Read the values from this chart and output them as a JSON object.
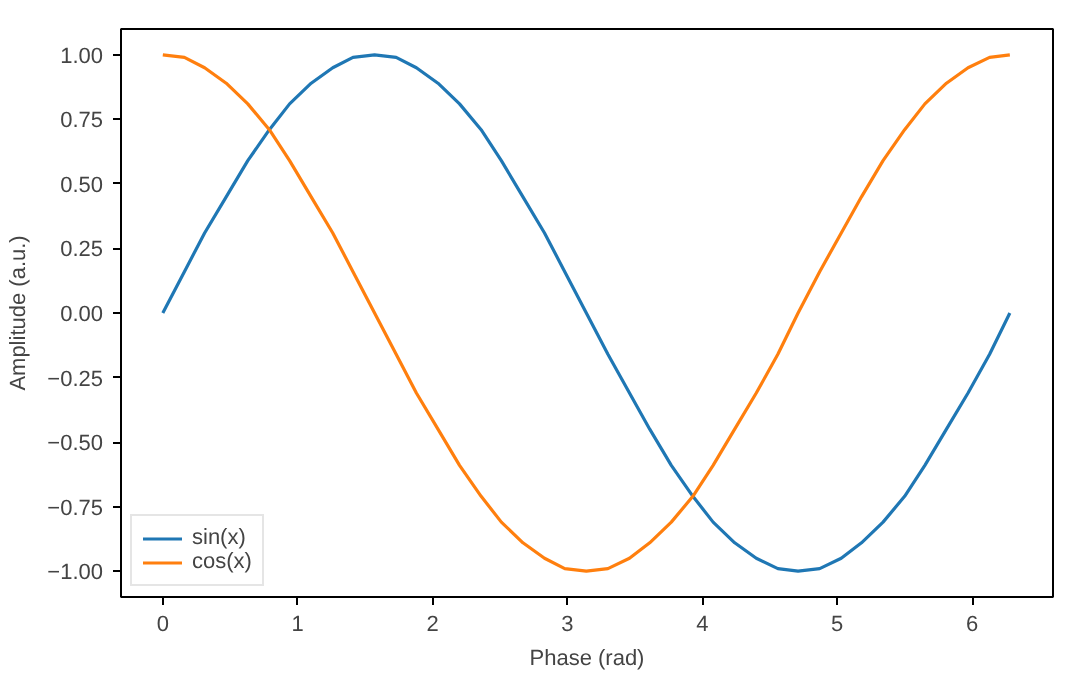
{
  "chart_data": {
    "type": "line",
    "xlabel": "Phase (rad)",
    "ylabel": "Amplitude (a.u.)",
    "x": [
      0,
      0.16,
      0.31,
      0.47,
      0.63,
      0.79,
      0.94,
      1.1,
      1.26,
      1.41,
      1.57,
      1.73,
      1.88,
      2.04,
      2.2,
      2.36,
      2.51,
      2.67,
      2.83,
      2.98,
      3.14,
      3.3,
      3.46,
      3.61,
      3.77,
      3.93,
      4.08,
      4.24,
      4.4,
      4.56,
      4.71,
      4.87,
      5.03,
      5.18,
      5.34,
      5.5,
      5.65,
      5.81,
      5.97,
      6.13,
      6.28
    ],
    "series": [
      {
        "name": "sin(x)",
        "color": "#1f77b4",
        "values": [
          0,
          0.16,
          0.31,
          0.45,
          0.59,
          0.71,
          0.81,
          0.89,
          0.95,
          0.99,
          1,
          0.99,
          0.95,
          0.89,
          0.81,
          0.71,
          0.59,
          0.45,
          0.31,
          0.16,
          0,
          -0.16,
          -0.31,
          -0.45,
          -0.59,
          -0.71,
          -0.81,
          -0.89,
          -0.95,
          -0.99,
          -1,
          -0.99,
          -0.95,
          -0.89,
          -0.81,
          -0.71,
          -0.59,
          -0.45,
          -0.31,
          -0.16,
          0
        ]
      },
      {
        "name": "cos(x)",
        "color": "#ff7f0e",
        "values": [
          1,
          0.99,
          0.95,
          0.89,
          0.81,
          0.71,
          0.59,
          0.45,
          0.31,
          0.16,
          0,
          -0.16,
          -0.31,
          -0.45,
          -0.59,
          -0.71,
          -0.81,
          -0.89,
          -0.95,
          -0.99,
          -1,
          -0.99,
          -0.95,
          -0.89,
          -0.81,
          -0.71,
          -0.59,
          -0.45,
          -0.31,
          -0.16,
          0,
          0.16,
          0.31,
          0.45,
          0.59,
          0.71,
          0.81,
          0.89,
          0.95,
          0.99,
          1
        ]
      }
    ],
    "xlim": [
      -0.31,
      6.6
    ],
    "ylim": [
      -1.1,
      1.1
    ],
    "xticks": [
      0,
      1,
      2,
      3,
      4,
      5,
      6
    ],
    "yticks": [
      {
        "value": -1,
        "label": "−1.00"
      },
      {
        "value": -0.75,
        "label": "−0.75"
      },
      {
        "value": -0.5,
        "label": "−0.50"
      },
      {
        "value": -0.25,
        "label": "−0.25"
      },
      {
        "value": 0,
        "label": "0.00"
      },
      {
        "value": 0.25,
        "label": "0.25"
      },
      {
        "value": 0.5,
        "label": "0.50"
      },
      {
        "value": 0.75,
        "label": "0.75"
      },
      {
        "value": 1,
        "label": "1.00"
      }
    ],
    "grid": false,
    "legend": "bottom left",
    "line_style": "solid"
  }
}
